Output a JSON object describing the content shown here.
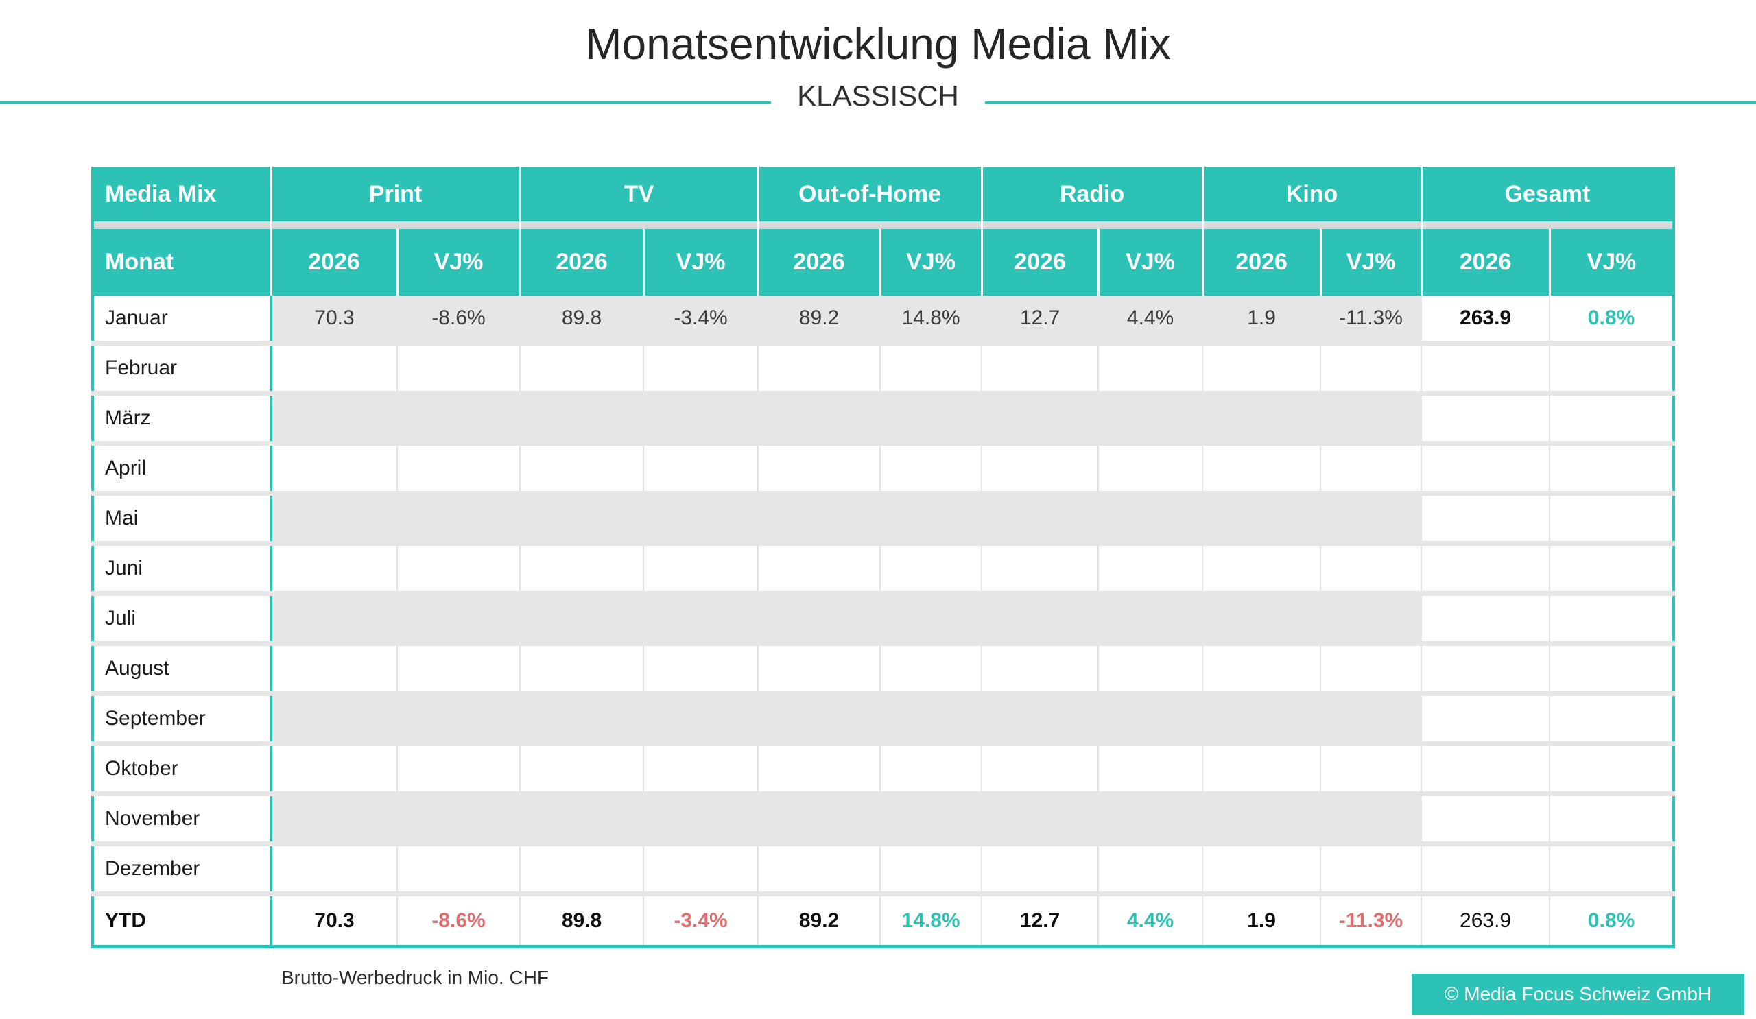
{
  "page": {
    "title": "Monatsentwicklung Media Mix",
    "subtitle": "KLASSISCH",
    "footnote": "Brutto-Werbedruck in Mio. CHF",
    "copyright": "© Media Focus Schweiz GmbH"
  },
  "colors": {
    "teal": "#2cc3b6",
    "negative": "#e06e6e",
    "stripe": "#e6e6e6",
    "header_separator": "#d9d9d9"
  },
  "table": {
    "type": "table",
    "unit": "Brutto-Werbedruck in Mio. CHF",
    "corner_label": "Media Mix",
    "month_header": "Monat",
    "groups": [
      {
        "label": "Print"
      },
      {
        "label": "TV"
      },
      {
        "label": "Out-of-Home"
      },
      {
        "label": "Radio"
      },
      {
        "label": "Kino"
      },
      {
        "label": "Gesamt"
      }
    ],
    "sub_columns": {
      "year": "2026",
      "vj": "VJ%"
    },
    "rows": [
      {
        "month": "Januar",
        "striped": true,
        "values": [
          "70.3",
          "-8.6%",
          "89.8",
          "-3.4%",
          "89.2",
          "14.8%",
          "12.7",
          "4.4%",
          "1.9",
          "-11.3%"
        ],
        "gesamt": [
          "263.9",
          "0.8%"
        ]
      },
      {
        "month": "Februar",
        "striped": false,
        "values": [
          "",
          "",
          "",
          "",
          "",
          "",
          "",
          "",
          "",
          ""
        ],
        "gesamt": [
          "",
          ""
        ]
      },
      {
        "month": "März",
        "striped": true,
        "values": [
          "",
          "",
          "",
          "",
          "",
          "",
          "",
          "",
          "",
          ""
        ],
        "gesamt": [
          "",
          ""
        ]
      },
      {
        "month": "April",
        "striped": false,
        "values": [
          "",
          "",
          "",
          "",
          "",
          "",
          "",
          "",
          "",
          ""
        ],
        "gesamt": [
          "",
          ""
        ]
      },
      {
        "month": "Mai",
        "striped": true,
        "values": [
          "",
          "",
          "",
          "",
          "",
          "",
          "",
          "",
          "",
          ""
        ],
        "gesamt": [
          "",
          ""
        ]
      },
      {
        "month": "Juni",
        "striped": false,
        "values": [
          "",
          "",
          "",
          "",
          "",
          "",
          "",
          "",
          "",
          ""
        ],
        "gesamt": [
          "",
          ""
        ]
      },
      {
        "month": "Juli",
        "striped": true,
        "values": [
          "",
          "",
          "",
          "",
          "",
          "",
          "",
          "",
          "",
          ""
        ],
        "gesamt": [
          "",
          ""
        ]
      },
      {
        "month": "August",
        "striped": false,
        "values": [
          "",
          "",
          "",
          "",
          "",
          "",
          "",
          "",
          "",
          ""
        ],
        "gesamt": [
          "",
          ""
        ]
      },
      {
        "month": "September",
        "striped": true,
        "values": [
          "",
          "",
          "",
          "",
          "",
          "",
          "",
          "",
          "",
          ""
        ],
        "gesamt": [
          "",
          ""
        ]
      },
      {
        "month": "Oktober",
        "striped": false,
        "values": [
          "",
          "",
          "",
          "",
          "",
          "",
          "",
          "",
          "",
          ""
        ],
        "gesamt": [
          "",
          ""
        ]
      },
      {
        "month": "November",
        "striped": true,
        "values": [
          "",
          "",
          "",
          "",
          "",
          "",
          "",
          "",
          "",
          ""
        ],
        "gesamt": [
          "",
          ""
        ]
      },
      {
        "month": "Dezember",
        "striped": false,
        "values": [
          "",
          "",
          "",
          "",
          "",
          "",
          "",
          "",
          "",
          ""
        ],
        "gesamt": [
          "",
          ""
        ]
      }
    ],
    "ytd": {
      "label": "YTD",
      "values": [
        "70.3",
        "-8.6%",
        "89.8",
        "-3.4%",
        "89.2",
        "14.8%",
        "12.7",
        "4.4%",
        "1.9",
        "-11.3%"
      ],
      "gesamt": [
        "263.9",
        "0.8%"
      ]
    }
  }
}
